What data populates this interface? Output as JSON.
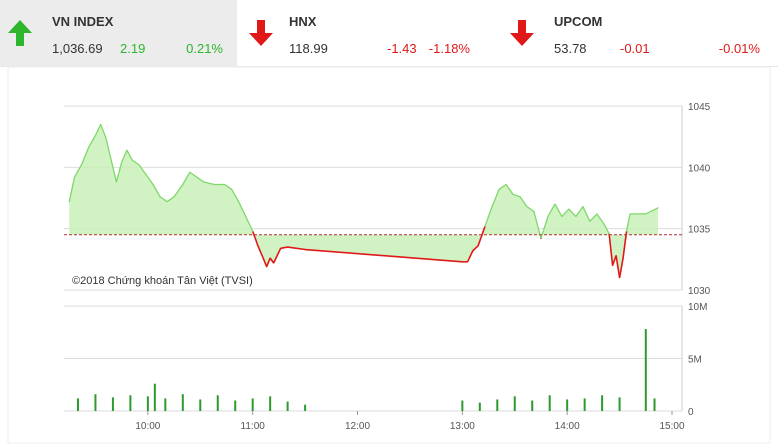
{
  "indices": [
    {
      "name": "VN INDEX",
      "value": "1,036.69",
      "change": "2.19",
      "percent": "0.21%",
      "direction": "up",
      "icon": "arrow-up-icon"
    },
    {
      "name": "HNX",
      "value": "118.99",
      "change": "-1.43",
      "percent": "-1.18%",
      "direction": "down",
      "icon": "arrow-down-icon"
    },
    {
      "name": "UPCOM",
      "value": "53.78",
      "change": "-0.01",
      "percent": "-0.01%",
      "direction": "down",
      "icon": "arrow-down-icon"
    }
  ],
  "colors": {
    "up": "#2db52d",
    "down": "#e01818",
    "area_fill": "#c9f0b8",
    "area_line": "#7fd86a",
    "reference": "#b03030",
    "volume": "#2e9a2e"
  },
  "chart_data": {
    "type": "area",
    "copyright": "©2018 Chứng khoán Tân Việt (TVSI)",
    "reference_value": 1034.5,
    "price_axis": {
      "ticks": [
        "1045",
        "1040",
        "1035",
        "1030"
      ],
      "ylim": [
        1030,
        1045
      ]
    },
    "volume_axis": {
      "ticks": [
        "10M",
        "5M",
        "0"
      ],
      "ylim": [
        0,
        10
      ]
    },
    "time_axis": {
      "ticks": [
        "10:00",
        "11:00",
        "12:00",
        "13:00",
        "14:00",
        "15:00"
      ]
    },
    "price_series": [
      {
        "t": "9:15",
        "v": 1037.2
      },
      {
        "t": "9:18",
        "v": 1039.2
      },
      {
        "t": "9:22",
        "v": 1040.2
      },
      {
        "t": "9:26",
        "v": 1041.6
      },
      {
        "t": "9:30",
        "v": 1042.6
      },
      {
        "t": "9:33",
        "v": 1043.5
      },
      {
        "t": "9:36",
        "v": 1042.4
      },
      {
        "t": "9:39",
        "v": 1040.6
      },
      {
        "t": "9:42",
        "v": 1038.8
      },
      {
        "t": "9:45",
        "v": 1040.4
      },
      {
        "t": "9:48",
        "v": 1041.4
      },
      {
        "t": "9:51",
        "v": 1040.6
      },
      {
        "t": "9:55",
        "v": 1040.2
      },
      {
        "t": "9:59",
        "v": 1039.4
      },
      {
        "t": "10:03",
        "v": 1038.6
      },
      {
        "t": "10:07",
        "v": 1037.6
      },
      {
        "t": "10:11",
        "v": 1037.2
      },
      {
        "t": "10:15",
        "v": 1037.6
      },
      {
        "t": "10:20",
        "v": 1038.6
      },
      {
        "t": "10:24",
        "v": 1039.6
      },
      {
        "t": "10:28",
        "v": 1039.2
      },
      {
        "t": "10:32",
        "v": 1038.8
      },
      {
        "t": "10:38",
        "v": 1038.6
      },
      {
        "t": "10:44",
        "v": 1038.6
      },
      {
        "t": "10:48",
        "v": 1038.2
      },
      {
        "t": "10:52",
        "v": 1037.2
      },
      {
        "t": "10:56",
        "v": 1036.0
      },
      {
        "t": "11:00",
        "v": 1034.8
      },
      {
        "t": "11:03",
        "v": 1033.6
      },
      {
        "t": "11:06",
        "v": 1032.6
      },
      {
        "t": "11:08",
        "v": 1031.9
      },
      {
        "t": "11:10",
        "v": 1032.6
      },
      {
        "t": "11:12",
        "v": 1032.2
      },
      {
        "t": "11:14",
        "v": 1032.8
      },
      {
        "t": "11:16",
        "v": 1033.4
      },
      {
        "t": "11:20",
        "v": 1033.5
      },
      {
        "t": "11:30",
        "v": 1033.3
      },
      {
        "t": "13:00",
        "v": 1032.3
      },
      {
        "t": "13:03",
        "v": 1032.3
      },
      {
        "t": "13:06",
        "v": 1033.2
      },
      {
        "t": "13:09",
        "v": 1033.6
      },
      {
        "t": "13:13",
        "v": 1035.2
      },
      {
        "t": "13:17",
        "v": 1036.8
      },
      {
        "t": "13:21",
        "v": 1038.2
      },
      {
        "t": "13:25",
        "v": 1038.6
      },
      {
        "t": "13:29",
        "v": 1037.8
      },
      {
        "t": "13:33",
        "v": 1037.6
      },
      {
        "t": "13:37",
        "v": 1036.8
      },
      {
        "t": "13:41",
        "v": 1036.4
      },
      {
        "t": "13:45",
        "v": 1034.2
      },
      {
        "t": "13:49",
        "v": 1036.0
      },
      {
        "t": "13:53",
        "v": 1037.0
      },
      {
        "t": "13:57",
        "v": 1036.0
      },
      {
        "t": "14:01",
        "v": 1036.6
      },
      {
        "t": "14:05",
        "v": 1036.0
      },
      {
        "t": "14:09",
        "v": 1036.8
      },
      {
        "t": "14:13",
        "v": 1035.6
      },
      {
        "t": "14:17",
        "v": 1036.2
      },
      {
        "t": "14:21",
        "v": 1035.4
      },
      {
        "t": "14:24",
        "v": 1034.6
      },
      {
        "t": "14:26",
        "v": 1032.0
      },
      {
        "t": "14:28",
        "v": 1032.8
      },
      {
        "t": "14:30",
        "v": 1031.0
      },
      {
        "t": "14:32",
        "v": 1032.6
      },
      {
        "t": "14:34",
        "v": 1034.8
      },
      {
        "t": "14:36",
        "v": 1036.2
      },
      {
        "t": "14:45",
        "v": 1036.2
      },
      {
        "t": "14:52",
        "v": 1036.7
      }
    ],
    "volume_series": [
      {
        "t": "9:20",
        "v": 1.2
      },
      {
        "t": "9:30",
        "v": 1.6
      },
      {
        "t": "9:40",
        "v": 1.3
      },
      {
        "t": "9:50",
        "v": 1.5
      },
      {
        "t": "10:00",
        "v": 1.4
      },
      {
        "t": "10:04",
        "v": 2.6
      },
      {
        "t": "10:10",
        "v": 1.2
      },
      {
        "t": "10:20",
        "v": 1.6
      },
      {
        "t": "10:30",
        "v": 1.1
      },
      {
        "t": "10:40",
        "v": 1.5
      },
      {
        "t": "10:50",
        "v": 1.0
      },
      {
        "t": "11:00",
        "v": 1.2
      },
      {
        "t": "11:10",
        "v": 1.4
      },
      {
        "t": "11:20",
        "v": 0.9
      },
      {
        "t": "11:30",
        "v": 0.6
      },
      {
        "t": "13:00",
        "v": 1.0
      },
      {
        "t": "13:10",
        "v": 0.8
      },
      {
        "t": "13:20",
        "v": 1.1
      },
      {
        "t": "13:30",
        "v": 1.4
      },
      {
        "t": "13:40",
        "v": 1.0
      },
      {
        "t": "13:50",
        "v": 1.5
      },
      {
        "t": "14:00",
        "v": 1.1
      },
      {
        "t": "14:10",
        "v": 1.2
      },
      {
        "t": "14:20",
        "v": 1.5
      },
      {
        "t": "14:30",
        "v": 1.3
      },
      {
        "t": "14:45",
        "v": 7.8
      },
      {
        "t": "14:50",
        "v": 1.2
      }
    ]
  }
}
